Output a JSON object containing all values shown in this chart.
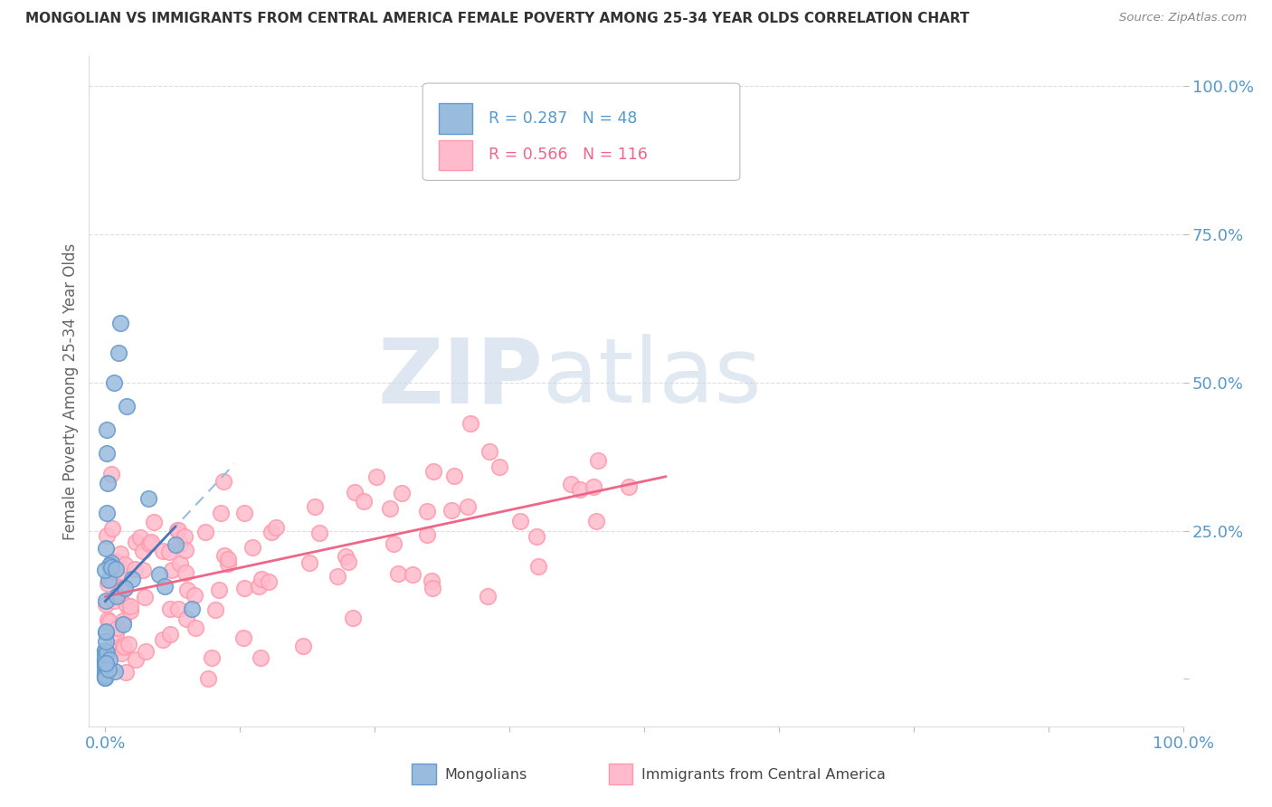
{
  "title": "MONGOLIAN VS IMMIGRANTS FROM CENTRAL AMERICA FEMALE POVERTY AMONG 25-34 YEAR OLDS CORRELATION CHART",
  "source": "Source: ZipAtlas.com",
  "ylabel": "Female Poverty Among 25-34 Year Olds",
  "legend_blue_r": "R = 0.287",
  "legend_blue_n": "N = 48",
  "legend_pink_r": "R = 0.566",
  "legend_pink_n": "N = 116",
  "blue_color": "#99BBDD",
  "blue_edge_color": "#6699CC",
  "pink_color": "#FFBBCC",
  "pink_edge_color": "#FF99AA",
  "blue_line_color": "#4477BB",
  "blue_dash_color": "#99BBDD",
  "pink_line_color": "#EE6688",
  "watermark_zip": "ZIP",
  "watermark_atlas": "atlas",
  "bg_color": "#ffffff",
  "grid_color": "#dddddd",
  "tick_label_color": "#5599CC",
  "title_color": "#333333",
  "source_color": "#888888",
  "ylabel_color": "#666666"
}
